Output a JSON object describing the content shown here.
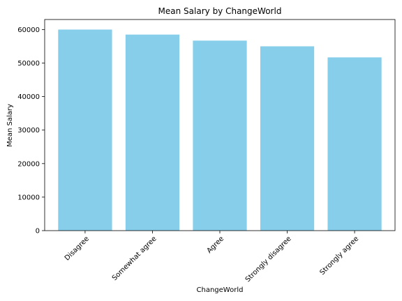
{
  "chart_data": {
    "type": "bar",
    "title": "Mean Salary by ChangeWorld",
    "xlabel": "ChangeWorld",
    "ylabel": "Mean Salary",
    "categories": [
      "Disagree",
      "Somewhat agree",
      "Agree",
      "Strongly disagree",
      "Strongly agree"
    ],
    "values": [
      60000,
      58500,
      56700,
      55000,
      51700
    ],
    "ylim": [
      0,
      63000
    ],
    "yticks": [
      0,
      10000,
      20000,
      30000,
      40000,
      50000,
      60000
    ],
    "bar_color": "#87ceeb",
    "grid": false,
    "x_tick_rotation_deg": 45
  }
}
